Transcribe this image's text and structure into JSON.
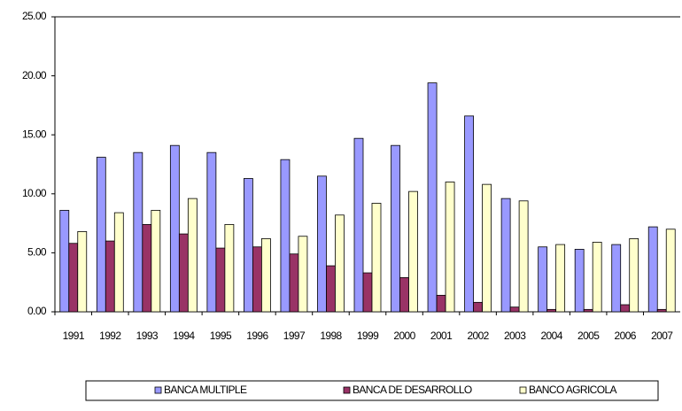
{
  "chart_data": {
    "type": "bar",
    "categories": [
      "1991",
      "1992",
      "1993",
      "1994",
      "1995",
      "1996",
      "1997",
      "1998",
      "1999",
      "2000",
      "2001",
      "2002",
      "2003",
      "2004",
      "2005",
      "2006",
      "2007"
    ],
    "series": [
      {
        "name": "BANCA MULTIPLE",
        "color": "#9999ff",
        "values": [
          8.6,
          13.1,
          13.5,
          14.1,
          13.5,
          11.3,
          12.9,
          11.5,
          14.7,
          14.1,
          19.4,
          16.6,
          9.6,
          5.5,
          5.3,
          5.7,
          7.2
        ]
      },
      {
        "name": "BANCA DE DESARROLLO",
        "color": "#993366",
        "values": [
          5.8,
          6.0,
          7.4,
          6.6,
          5.4,
          5.5,
          4.9,
          3.9,
          3.3,
          2.9,
          1.4,
          0.8,
          0.4,
          0.2,
          0.2,
          0.6,
          0.2
        ]
      },
      {
        "name": "BANCO AGRICOLA",
        "color": "#ffffcc",
        "values": [
          6.8,
          8.4,
          8.6,
          9.6,
          7.4,
          6.2,
          6.4,
          8.2,
          9.2,
          10.2,
          11.0,
          10.8,
          9.4,
          5.7,
          5.9,
          6.2,
          7.0
        ]
      }
    ],
    "ylim": [
      0,
      25
    ],
    "yticks": [
      {
        "value": 0,
        "label": "0.00"
      },
      {
        "value": 5,
        "label": "5.00"
      },
      {
        "value": 10,
        "label": "10.00"
      },
      {
        "value": 15,
        "label": "15.00"
      },
      {
        "value": 20,
        "label": "20.00"
      },
      {
        "value": 25,
        "label": "25.00"
      }
    ],
    "grid": false,
    "legend": "bottom"
  }
}
